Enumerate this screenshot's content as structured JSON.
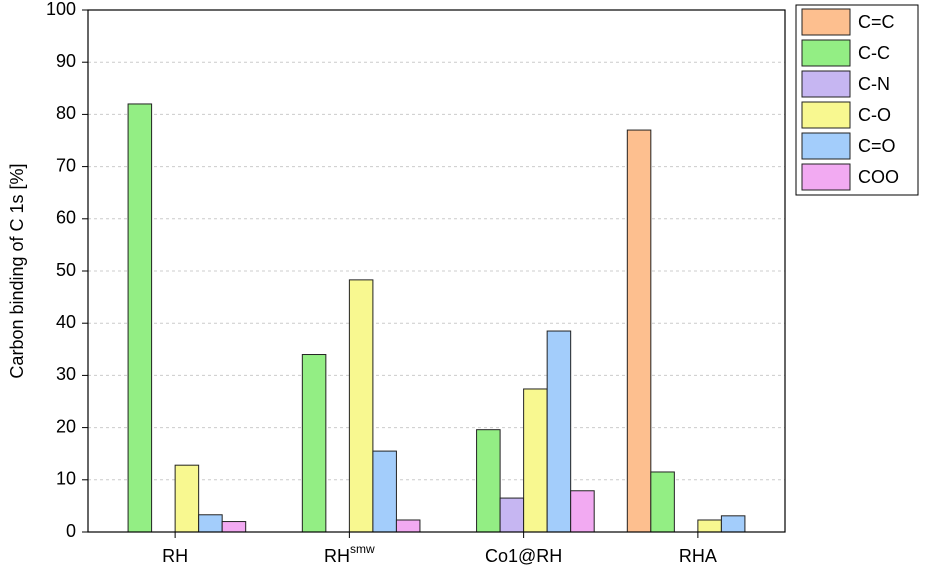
{
  "chart_data": {
    "type": "bar",
    "ylabel": "Carbon binding of C 1s [%]",
    "categories": [
      "RH",
      "RH",
      "Co1@RH",
      "RHA"
    ],
    "category_superscripts": [
      null,
      "smw",
      null,
      null
    ],
    "series": [
      {
        "name": "C=C",
        "color": "#fdbf8f",
        "values": [
          null,
          null,
          null,
          77
        ]
      },
      {
        "name": "C-C",
        "color": "#93ee84",
        "values": [
          82,
          34,
          19.6,
          11.5
        ]
      },
      {
        "name": "C-N",
        "color": "#c6b6f2",
        "values": [
          null,
          null,
          6.5,
          null
        ]
      },
      {
        "name": "C-O",
        "color": "#f8f890",
        "values": [
          12.8,
          48.3,
          27.4,
          2.3
        ]
      },
      {
        "name": "C=O",
        "color": "#a3cdfb",
        "values": [
          3.3,
          15.5,
          38.5,
          3.1
        ]
      },
      {
        "name": "COO",
        "color": "#f2aaf2",
        "values": [
          2.0,
          2.3,
          7.9,
          null
        ]
      }
    ],
    "ylim": [
      0,
      100
    ],
    "yticks": [
      0,
      10,
      20,
      30,
      40,
      50,
      60,
      70,
      80,
      90,
      100
    ],
    "grid": true,
    "legend": "right"
  }
}
